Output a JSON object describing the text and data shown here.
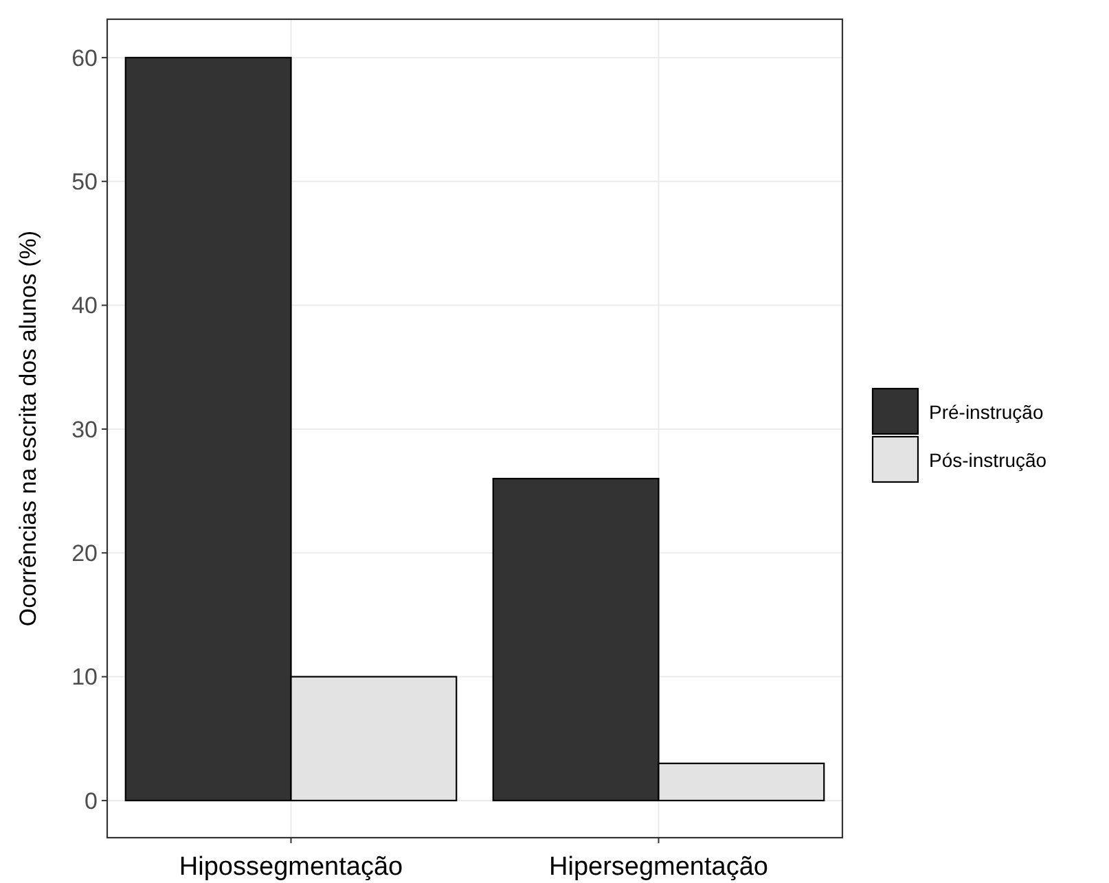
{
  "chart_data": {
    "type": "bar",
    "ylabel": "Ocorrências na escrita dos alunos (%)",
    "categories": [
      "Hipossegmentação",
      "Hipersegmentação"
    ],
    "series": [
      {
        "name": "Pré-instrução",
        "color": "#333333",
        "values": [
          60,
          26
        ]
      },
      {
        "name": "Pós-instrução",
        "color": "#e3e3e3",
        "values": [
          10,
          3
        ]
      }
    ],
    "ylim": [
      -3,
      63.1
    ],
    "yticks": [
      0,
      10,
      20,
      30,
      40,
      50,
      60
    ],
    "grid": true,
    "legend": "right"
  }
}
